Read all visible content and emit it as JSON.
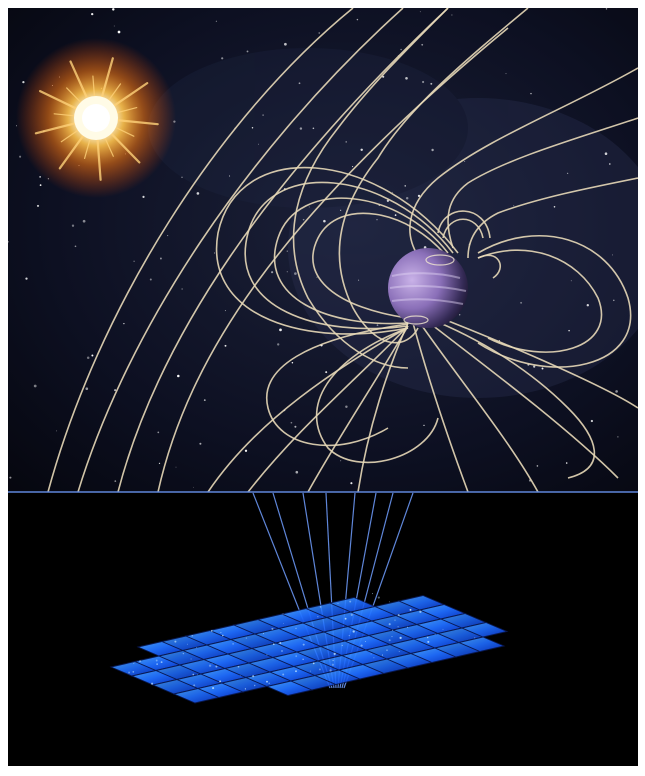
{
  "image": {
    "subject": "illustration",
    "colors": {
      "page_background": "#ffffff",
      "space_background": "#0b0d1a",
      "lower_background": "#000000",
      "field_lines": "#e8d9b8",
      "star_core": "#fffbe6",
      "star_glow": "#ff8a1a",
      "planet_light": "#b69bd6",
      "planet_dark": "#1f1833",
      "array_panel": "#1f6dff",
      "array_highlight": "#64b8ff",
      "signal_lines": "#5f86d9"
    },
    "elements": {
      "star": "sun-icon",
      "planet": "planet-icon",
      "magnetic_field": "field-lines-icon",
      "antenna_array": "antenna-array-icon",
      "signal": "signal-lines-icon"
    }
  }
}
